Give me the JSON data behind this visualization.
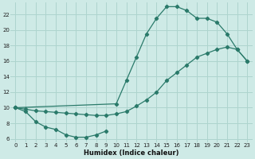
{
  "xlabel": "Humidex (Indice chaleur)",
  "bg_color": "#ceeae6",
  "line_color": "#2a7a6a",
  "grid_color": "#aed4ce",
  "xlim": [
    -0.5,
    23.5
  ],
  "ylim": [
    5.5,
    23.5
  ],
  "xticks": [
    0,
    1,
    2,
    3,
    4,
    5,
    6,
    7,
    8,
    9,
    10,
    11,
    12,
    13,
    14,
    15,
    16,
    17,
    18,
    19,
    20,
    21,
    22,
    23
  ],
  "yticks": [
    6,
    8,
    10,
    12,
    14,
    16,
    18,
    20,
    22
  ],
  "line_bottom_x": [
    0,
    1,
    2,
    3,
    4,
    5,
    6,
    7,
    8,
    9
  ],
  "line_bottom_y": [
    10,
    9.5,
    8.2,
    7.5,
    7.2,
    6.5,
    6.2,
    6.2,
    6.5,
    7.0
  ],
  "line_diag_x": [
    0,
    1,
    2,
    3,
    4,
    5,
    6,
    7,
    8,
    9,
    10,
    11,
    12,
    13,
    14,
    15,
    16,
    17,
    18,
    19,
    20,
    21,
    22,
    23
  ],
  "line_diag_y": [
    10,
    9.8,
    9.6,
    9.5,
    9.4,
    9.3,
    9.2,
    9.1,
    9.0,
    9.0,
    9.2,
    9.5,
    10.2,
    11.0,
    12.0,
    13.5,
    14.5,
    15.5,
    16.5,
    17.0,
    17.5,
    17.8,
    17.5,
    16.0
  ],
  "line_top_x": [
    0,
    10,
    11,
    12,
    13,
    14,
    15,
    16,
    17,
    18,
    19,
    20,
    21,
    22,
    23
  ],
  "line_top_y": [
    10,
    10.5,
    13.5,
    16.5,
    19.5,
    21.5,
    23.0,
    23.0,
    22.5,
    21.5,
    21.5,
    21.0,
    19.5,
    17.5,
    16.0
  ]
}
